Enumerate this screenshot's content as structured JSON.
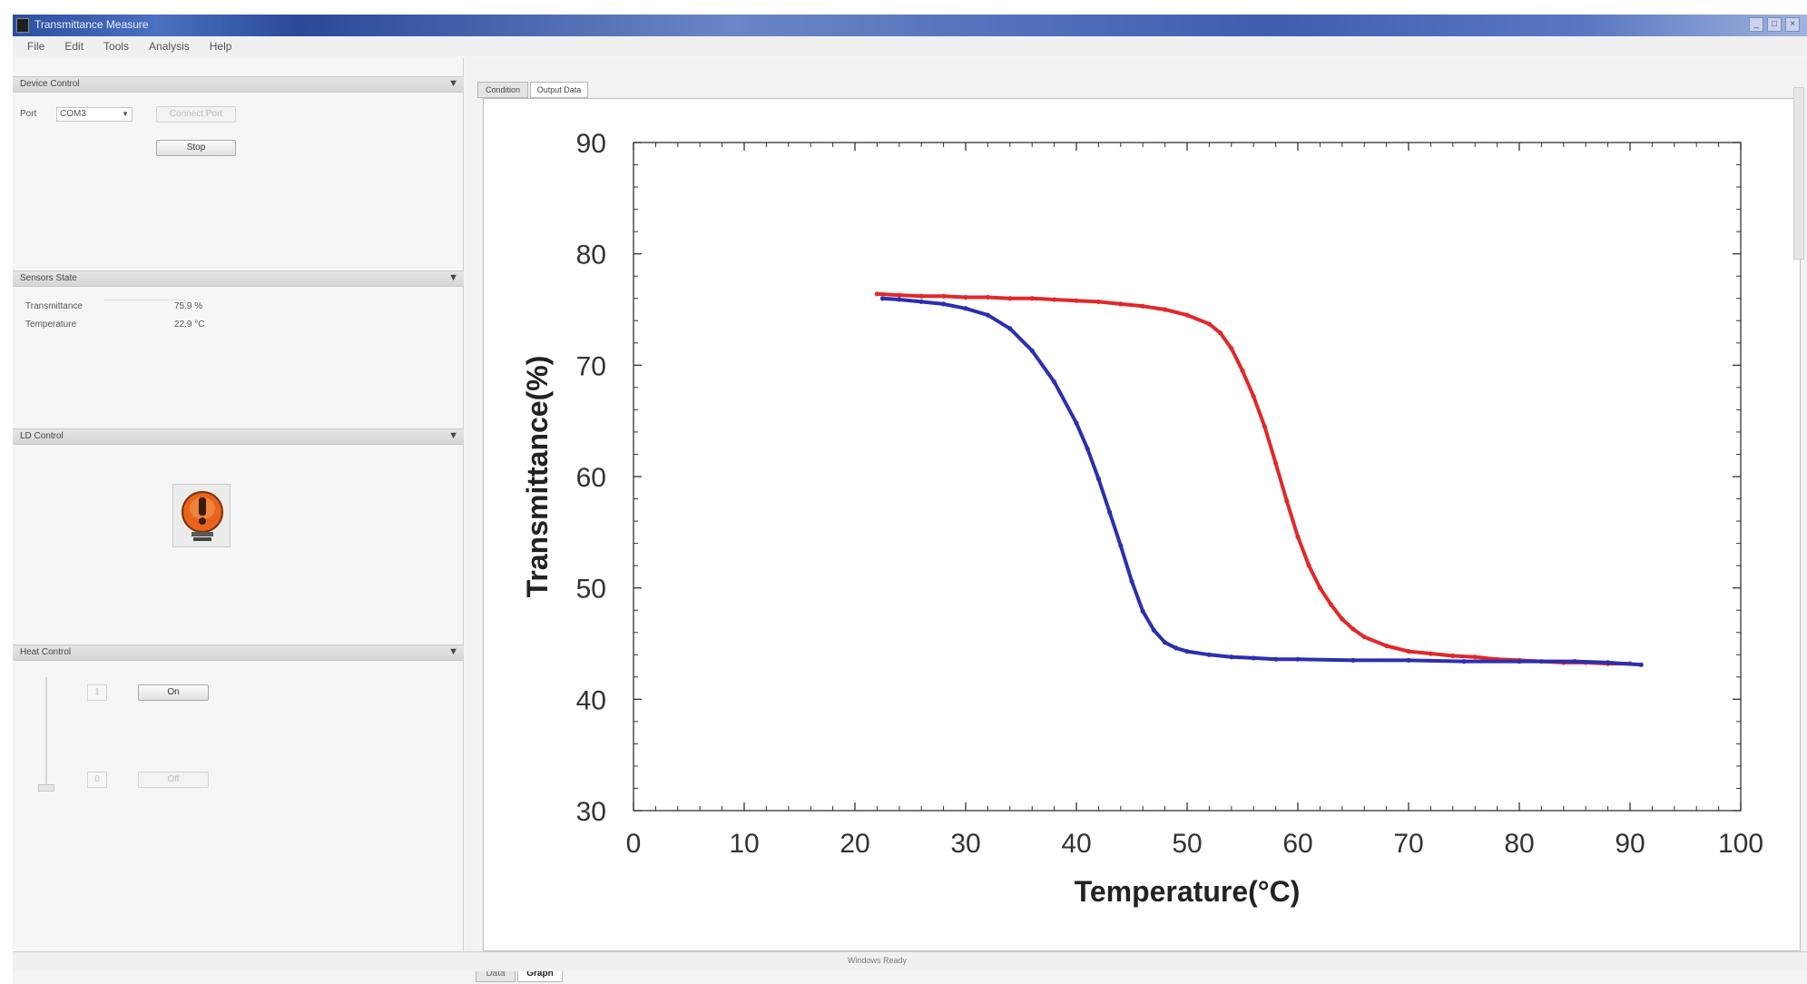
{
  "window": {
    "title": "Transmittance Measure",
    "controls": [
      "_",
      "□",
      "×"
    ]
  },
  "menu": [
    "File",
    "Edit",
    "Tools",
    "Analysis",
    "Help"
  ],
  "device_control": {
    "header": "Device Control",
    "port_label": "Port",
    "port_value": "COM3",
    "connect_label": "Connect Port",
    "stop_label": "Stop"
  },
  "sensor_state": {
    "header": "Sensors State",
    "transmittance_label": "Transmittance",
    "transmittance_value": "75.9 %",
    "temperature_label": "Temperature",
    "temperature_value": "22.9 °C"
  },
  "ld_control": {
    "header": "LD Control"
  },
  "heat_control": {
    "header": "Heat Control",
    "on_label": "On",
    "off_label": "Off",
    "spin_up": "1",
    "spin_down": "0"
  },
  "doc_tabs": [
    "Condition",
    "Output Data"
  ],
  "bottom_tabs": [
    "Data",
    "Graph"
  ],
  "status": "Windows Ready",
  "colors": {
    "heating": "#e1282a",
    "cooling": "#2b2fb0"
  },
  "chart_data": {
    "type": "line",
    "title": "",
    "xlabel": "Temperature(°C)",
    "ylabel": "Transmittance(%)",
    "xlim": [
      0,
      100
    ],
    "ylim": [
      30,
      90
    ],
    "xticks": [
      0,
      10,
      20,
      30,
      40,
      50,
      60,
      70,
      80,
      90,
      100
    ],
    "yticks": [
      30,
      40,
      50,
      60,
      70,
      80,
      90
    ],
    "grid": false,
    "series": [
      {
        "color": "#e1282a",
        "x": [
          22,
          24,
          26,
          28,
          30,
          32,
          34,
          36,
          38,
          40,
          42,
          44,
          46,
          48,
          50,
          52,
          53,
          54,
          55,
          56,
          57,
          58,
          59,
          60,
          61,
          62,
          63,
          64,
          65,
          66,
          68,
          70,
          72,
          74,
          76,
          78,
          80,
          82,
          84,
          86,
          88,
          90
        ],
        "y": [
          76.4,
          76.3,
          76.2,
          76.2,
          76.1,
          76.1,
          76.0,
          76.0,
          75.9,
          75.8,
          75.7,
          75.5,
          75.3,
          75.0,
          74.5,
          73.7,
          72.9,
          71.5,
          69.5,
          67.2,
          64.5,
          61.2,
          57.8,
          54.6,
          52.0,
          50.0,
          48.5,
          47.2,
          46.3,
          45.6,
          44.8,
          44.3,
          44.1,
          43.9,
          43.8,
          43.6,
          43.5,
          43.4,
          43.3,
          43.3,
          43.2,
          43.2
        ]
      },
      {
        "color": "#2b2fb0",
        "x": [
          22.5,
          24,
          26,
          28,
          30,
          32,
          34,
          36,
          38,
          40,
          41,
          42,
          43,
          44,
          45,
          46,
          47,
          48,
          49,
          50,
          52,
          54,
          56,
          58,
          60,
          65,
          70,
          75,
          80,
          85,
          88,
          91
        ],
        "y": [
          76.0,
          75.9,
          75.7,
          75.5,
          75.1,
          74.5,
          73.3,
          71.3,
          68.5,
          64.8,
          62.5,
          59.8,
          56.8,
          53.8,
          50.6,
          47.9,
          46.2,
          45.1,
          44.6,
          44.3,
          44.0,
          43.8,
          43.7,
          43.6,
          43.6,
          43.5,
          43.5,
          43.4,
          43.4,
          43.4,
          43.3,
          43.1
        ]
      }
    ]
  }
}
